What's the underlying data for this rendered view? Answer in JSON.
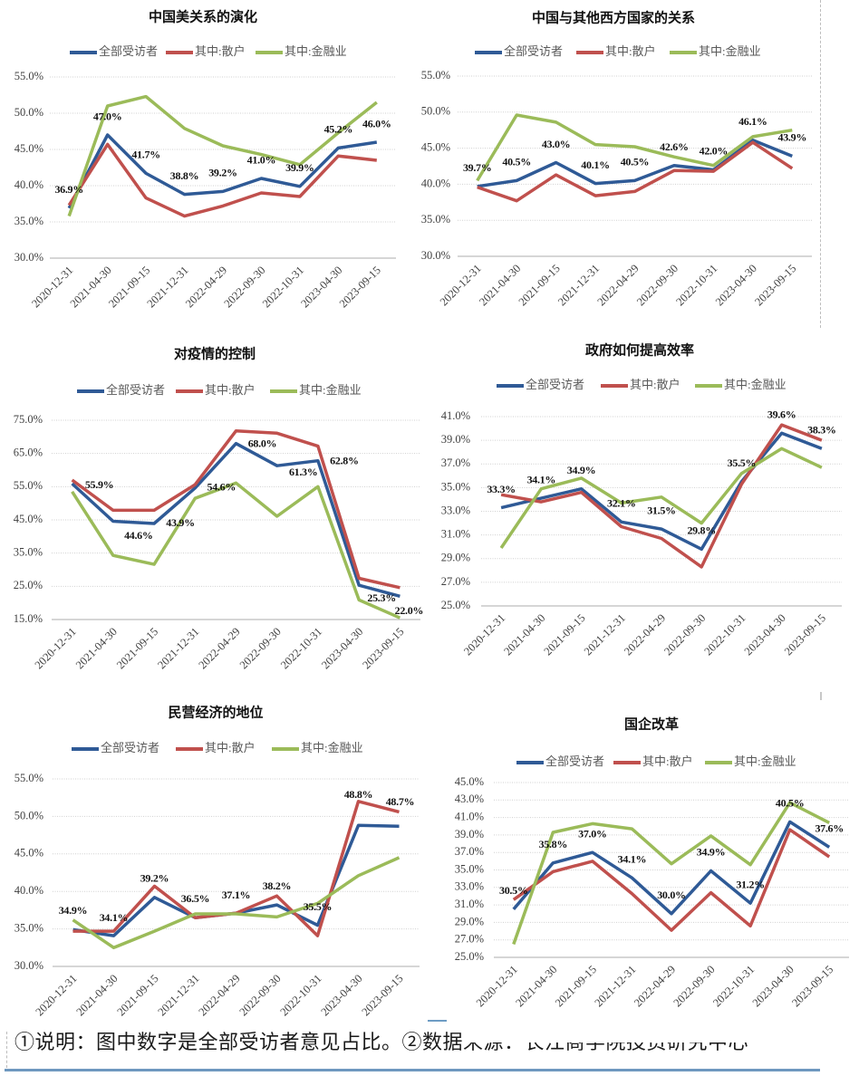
{
  "footer": {
    "note": "①说明：图中数字是全部受访者意见占比。②数据来源：长江商学院投资研究中心"
  },
  "chart_data": [
    {
      "type": "line",
      "title": "中国美关系的演化",
      "categories": [
        "2020-12-31",
        "2021-04-30",
        "2021-09-15",
        "2021-12-31",
        "2022-04-29",
        "2022-09-30",
        "2022-10-31",
        "2023-04-30",
        "2023-09-15"
      ],
      "series": [
        {
          "name": "全部受访者",
          "color": "#2f5a96",
          "values": [
            36.9,
            47.0,
            41.7,
            38.8,
            39.2,
            41.0,
            39.9,
            45.2,
            46.0
          ]
        },
        {
          "name": "其中:散户",
          "color": "#c0504d",
          "values": [
            37.3,
            45.7,
            38.3,
            35.8,
            37.2,
            39.0,
            38.5,
            44.1,
            43.5
          ]
        },
        {
          "name": "其中:金融业",
          "color": "#9bbb59",
          "values": [
            35.8,
            51.0,
            52.3,
            47.9,
            45.5,
            44.3,
            42.9,
            47.3,
            51.5
          ]
        }
      ],
      "data_labels": [
        "36.9%",
        "47.0%",
        "41.7%",
        "38.8%",
        "39.2%",
        "41.0%",
        "39.9%",
        "45.2%",
        "46.0%"
      ],
      "ylim": [
        30,
        55
      ],
      "yticks": [
        30,
        35,
        40,
        45,
        50,
        55
      ],
      "ytick_labels": [
        "30.0%",
        "35.0%",
        "40.0%",
        "45.0%",
        "50.0%",
        "55.0%"
      ],
      "xlabel": "",
      "ylabel": "",
      "unit": "%",
      "legend": "top",
      "grid": true
    },
    {
      "type": "line",
      "title": "中国与其他西方国家的关系",
      "categories": [
        "2020-12-31",
        "2021-04-30",
        "2021-09-15",
        "2021-12-31",
        "2022-04-29",
        "2022-09-30",
        "2022-10-31",
        "2023-04-30",
        "2023-09-15"
      ],
      "series": [
        {
          "name": "全部受访者",
          "color": "#2f5a96",
          "values": [
            39.7,
            40.5,
            43.0,
            40.1,
            40.5,
            42.6,
            42.0,
            46.1,
            43.9
          ]
        },
        {
          "name": "其中:散户",
          "color": "#c0504d",
          "values": [
            39.6,
            37.7,
            41.3,
            38.4,
            39.0,
            41.9,
            41.8,
            45.8,
            42.2
          ]
        },
        {
          "name": "其中:金融业",
          "color": "#9bbb59",
          "values": [
            40.5,
            49.6,
            48.6,
            45.5,
            45.2,
            43.8,
            42.6,
            46.6,
            47.5
          ]
        }
      ],
      "data_labels": [
        "39.7%",
        "40.5%",
        "43.0%",
        "40.1%",
        "40.5%",
        "42.6%",
        "42.0%",
        "46.1%",
        "43.9%"
      ],
      "ylim": [
        30,
        55
      ],
      "yticks": [
        30,
        35,
        40,
        45,
        50,
        55
      ],
      "ytick_labels": [
        "30.0%",
        "35.0%",
        "40.0%",
        "45.0%",
        "50.0%",
        "55.0%"
      ],
      "xlabel": "",
      "ylabel": "",
      "unit": "%",
      "legend": "top",
      "grid": true
    },
    {
      "type": "line",
      "title": "对疫情的控制",
      "categories": [
        "2020-12-31",
        "2021-04-30",
        "2021-09-15",
        "2021-12-31",
        "2022-04-29",
        "2022-09-30",
        "2022-10-31",
        "2023-04-30",
        "2023-09-15"
      ],
      "series": [
        {
          "name": "全部受访者",
          "color": "#2f5a96",
          "values": [
            55.9,
            44.6,
            43.9,
            54.6,
            68.0,
            61.3,
            62.8,
            25.3,
            22.0
          ]
        },
        {
          "name": "其中:散户",
          "color": "#c0504d",
          "values": [
            57.0,
            47.9,
            47.9,
            55.6,
            71.8,
            71.1,
            67.2,
            27.4,
            24.6
          ]
        },
        {
          "name": "其中:金融业",
          "color": "#9bbb59",
          "values": [
            53.5,
            34.3,
            31.6,
            51.5,
            56.1,
            46.1,
            55.0,
            20.9,
            15.5
          ]
        }
      ],
      "data_labels": [
        "55.9%",
        "44.6%",
        "43.9%",
        "54.6%",
        "68.0%",
        "61.3%",
        "62.8%",
        "25.3%",
        "22.0%"
      ],
      "ylim": [
        15,
        75
      ],
      "yticks": [
        15,
        25,
        35,
        45,
        55,
        65,
        75
      ],
      "ytick_labels": [
        "15.0%",
        "25.0%",
        "35.0%",
        "45.0%",
        "55.0%",
        "65.0%",
        "75.0%"
      ],
      "xlabel": "",
      "ylabel": "",
      "unit": "%",
      "legend": "top",
      "grid": true
    },
    {
      "type": "line",
      "title": "政府如何提高效率",
      "categories": [
        "2020-12-31",
        "2021-04-30",
        "2021-09-15",
        "2021-12-31",
        "2022-04-29",
        "2022-09-30",
        "2022-10-31",
        "2023-04-30",
        "2023-09-15"
      ],
      "series": [
        {
          "name": "全部受访者",
          "color": "#2f5a96",
          "values": [
            33.3,
            34.1,
            34.9,
            32.1,
            31.5,
            29.8,
            35.5,
            39.6,
            38.3
          ]
        },
        {
          "name": "其中:散户",
          "color": "#c0504d",
          "values": [
            34.4,
            33.8,
            34.6,
            31.7,
            30.7,
            28.3,
            35.3,
            40.3,
            39.0
          ]
        },
        {
          "name": "其中:金融业",
          "color": "#9bbb59",
          "values": [
            29.9,
            34.9,
            35.8,
            33.7,
            34.2,
            32.0,
            36.2,
            38.3,
            36.7
          ]
        }
      ],
      "data_labels": [
        "33.3%",
        "34.1%",
        "34.9%",
        "32.1%",
        "31.5%",
        "29.8%",
        "35.5%",
        "39.6%",
        "38.3%"
      ],
      "ylim": [
        25,
        41
      ],
      "yticks": [
        25,
        27,
        29,
        31,
        33,
        35,
        37,
        39,
        41
      ],
      "ytick_labels": [
        "25.0%",
        "27.0%",
        "29.0%",
        "31.0%",
        "33.0%",
        "35.0%",
        "37.0%",
        "39.0%",
        "41.0%"
      ],
      "xlabel": "",
      "ylabel": "",
      "unit": "%",
      "legend": "top",
      "grid": true
    },
    {
      "type": "line",
      "title": "民营经济的地位",
      "categories": [
        "2020-12-31",
        "2021-04-30",
        "2021-09-15",
        "2021-12-31",
        "2022-04-29",
        "2022-09-30",
        "2022-10-31",
        "2023-04-30",
        "2023-09-15"
      ],
      "series": [
        {
          "name": "全部受访者",
          "color": "#2f5a96",
          "values": [
            34.9,
            34.1,
            39.2,
            36.5,
            37.1,
            38.2,
            35.5,
            48.8,
            48.7
          ]
        },
        {
          "name": "其中:散户",
          "color": "#c0504d",
          "values": [
            34.7,
            34.7,
            40.7,
            36.5,
            37.1,
            39.4,
            34.1,
            52.0,
            50.6
          ]
        },
        {
          "name": "其中:金融业",
          "color": "#9bbb59",
          "values": [
            36.2,
            32.5,
            34.7,
            37.0,
            37.0,
            36.6,
            38.4,
            42.1,
            44.5
          ]
        }
      ],
      "data_labels": [
        "34.9%",
        "34.1%",
        "39.2%",
        "36.5%",
        "37.1%",
        "38.2%",
        "35.5%",
        "48.8%",
        "48.7%"
      ],
      "ylim": [
        30,
        55
      ],
      "yticks": [
        30,
        35,
        40,
        45,
        50,
        55
      ],
      "ytick_labels": [
        "30.0%",
        "35.0%",
        "40.0%",
        "45.0%",
        "50.0%",
        "55.0%"
      ],
      "xlabel": "",
      "ylabel": "",
      "unit": "%",
      "legend": "top",
      "grid": true
    },
    {
      "type": "line",
      "title": "国企改革",
      "categories": [
        "2020-12-31",
        "2021-04-30",
        "2021-09-15",
        "2021-12-31",
        "2022-04-29",
        "2022-09-30",
        "2022-10-31",
        "2023-04-30",
        "2023-09-15"
      ],
      "series": [
        {
          "name": "全部受访者",
          "color": "#2f5a96",
          "values": [
            30.5,
            35.8,
            37.0,
            34.1,
            30.0,
            34.9,
            31.2,
            40.5,
            37.6
          ]
        },
        {
          "name": "其中:散户",
          "color": "#c0504d",
          "values": [
            31.6,
            34.8,
            36.0,
            32.3,
            28.1,
            32.4,
            28.6,
            39.6,
            36.5
          ]
        },
        {
          "name": "其中:金融业",
          "color": "#9bbb59",
          "values": [
            26.5,
            39.3,
            40.3,
            39.7,
            35.7,
            38.9,
            35.6,
            42.7,
            40.4
          ]
        }
      ],
      "data_labels": [
        "30.5%",
        "35.8%",
        "37.0%",
        "34.1%",
        "30.0%",
        "34.9%",
        "31.2%",
        "40.5%",
        "37.6%"
      ],
      "ylim": [
        25,
        45
      ],
      "yticks": [
        25,
        27,
        29,
        31,
        33,
        35,
        37,
        39,
        41,
        43,
        45
      ],
      "ytick_labels": [
        "25.0%",
        "27.0%",
        "29.0%",
        "31.0%",
        "33.0%",
        "35.0%",
        "37.0%",
        "39.0%",
        "41.0%",
        "43.0%",
        "45.0%"
      ],
      "xlabel": "",
      "ylabel": "",
      "unit": "%",
      "legend": "top",
      "grid": true
    }
  ]
}
